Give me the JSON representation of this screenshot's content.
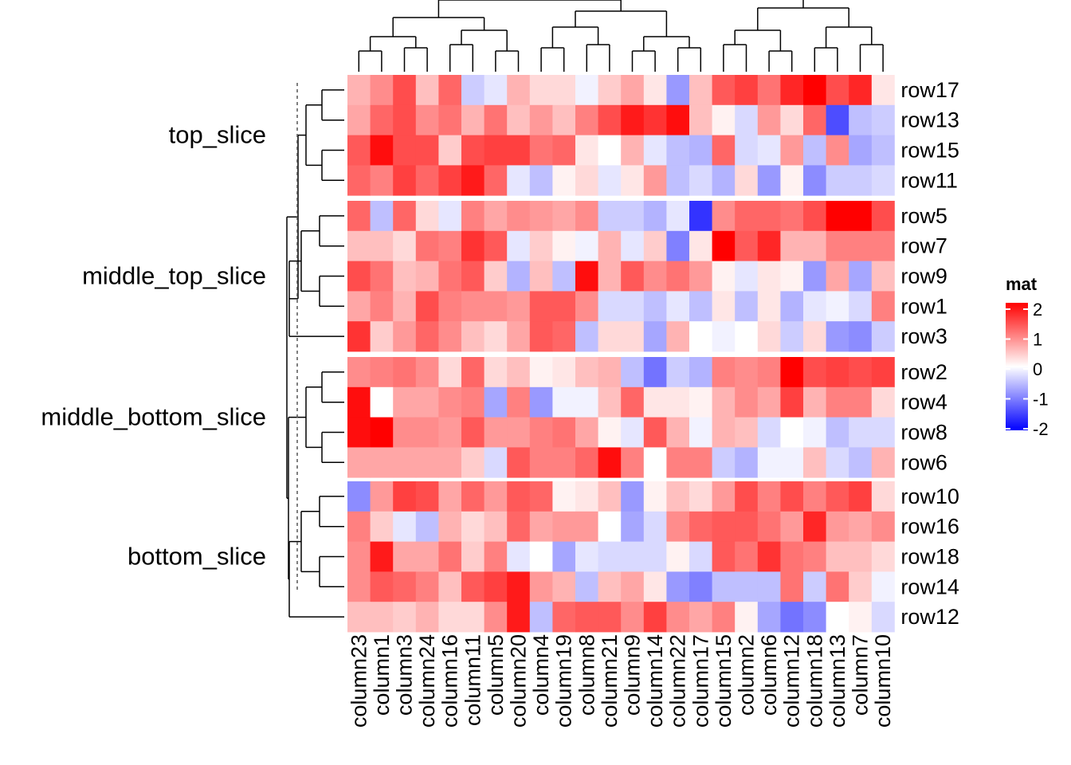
{
  "chart_data": {
    "type": "heatmap",
    "legend_title": "mat",
    "legend_ticks": [
      2,
      1,
      0,
      -1,
      -2
    ],
    "value_range": [
      -2,
      2
    ],
    "colors": {
      "low": "#0000ff",
      "mid": "#ffffff",
      "high": "#ff0000"
    },
    "columns": [
      "column23",
      "column1",
      "column3",
      "column24",
      "column16",
      "column11",
      "column5",
      "column20",
      "column4",
      "column19",
      "column8",
      "column21",
      "column9",
      "column14",
      "column22",
      "column17",
      "column15",
      "column2",
      "column6",
      "column12",
      "column18",
      "column13",
      "column7",
      "column10"
    ],
    "slices": [
      {
        "name": "top_slice",
        "rows": [
          "row17",
          "row13",
          "row15",
          "row11"
        ],
        "values": [
          [
            0.6,
            0.9,
            1.4,
            0.5,
            1.2,
            -0.4,
            -0.2,
            0.6,
            0.3,
            0.3,
            -0.1,
            0.4,
            0.7,
            0.2,
            -0.8,
            0.5,
            1.3,
            1.5,
            1.1,
            1.7,
            2.1,
            1.4,
            1.7,
            0.2
          ],
          [
            0.7,
            1.2,
            1.4,
            0.9,
            1.1,
            0.6,
            1.1,
            0.5,
            0.8,
            0.5,
            1.0,
            1.4,
            1.8,
            1.6,
            1.9,
            0.5,
            0.1,
            -0.3,
            0.8,
            0.3,
            1.2,
            -1.4,
            -0.5,
            -0.4
          ],
          [
            1.3,
            1.9,
            1.4,
            1.4,
            0.4,
            1.4,
            1.5,
            1.5,
            1.1,
            1.2,
            0.2,
            0.0,
            0.6,
            -0.2,
            -0.5,
            -0.6,
            1.2,
            -0.3,
            -0.2,
            0.8,
            -0.5,
            0.9,
            -0.7,
            -0.5
          ],
          [
            1.2,
            1.0,
            1.5,
            1.2,
            1.5,
            1.8,
            1.2,
            -0.2,
            -0.5,
            0.1,
            0.3,
            -0.2,
            0.2,
            0.8,
            -0.5,
            -0.3,
            -0.6,
            0.3,
            -0.8,
            0.1,
            -0.9,
            -0.4,
            -0.4,
            -0.3
          ]
        ]
      },
      {
        "name": "middle_top_slice",
        "rows": [
          "row5",
          "row7",
          "row9",
          "row1",
          "row3"
        ],
        "values": [
          [
            1.2,
            -0.5,
            1.2,
            0.3,
            -0.2,
            1.0,
            0.7,
            0.9,
            0.8,
            0.7,
            0.9,
            -0.4,
            -0.4,
            -0.6,
            -0.2,
            -1.6,
            0.9,
            1.2,
            1.2,
            1.1,
            1.4,
            2.1,
            2.1,
            1.4
          ],
          [
            0.5,
            0.5,
            0.3,
            1.1,
            1.0,
            1.6,
            1.3,
            -0.2,
            0.4,
            0.1,
            -0.1,
            0.6,
            -0.2,
            0.4,
            -1.0,
            0.2,
            2.1,
            1.3,
            1.7,
            0.6,
            0.6,
            1.0,
            1.0,
            1.0
          ],
          [
            1.4,
            1.1,
            0.5,
            0.6,
            1.1,
            1.3,
            0.4,
            -0.6,
            0.5,
            -0.5,
            1.9,
            0.6,
            1.3,
            0.9,
            1.1,
            0.8,
            0.1,
            -0.2,
            0.2,
            0.1,
            -0.8,
            0.7,
            -0.7,
            0.5
          ],
          [
            0.7,
            1.0,
            0.6,
            1.4,
            1.0,
            0.9,
            0.9,
            0.8,
            1.3,
            1.3,
            0.9,
            -0.3,
            -0.3,
            -0.5,
            -0.2,
            -0.5,
            0.2,
            -0.5,
            0.2,
            -0.6,
            -0.2,
            -0.1,
            -0.3,
            1.0
          ],
          [
            1.6,
            0.4,
            0.8,
            1.2,
            0.9,
            0.5,
            0.3,
            0.7,
            1.3,
            1.2,
            -0.5,
            0.3,
            0.3,
            -0.7,
            0.6,
            0.0,
            -0.1,
            0.0,
            0.3,
            -0.4,
            0.3,
            -0.8,
            -0.9,
            -0.4
          ]
        ]
      },
      {
        "name": "middle_bottom_slice",
        "rows": [
          "row2",
          "row4",
          "row8",
          "row6"
        ],
        "values": [
          [
            0.9,
            1.0,
            1.1,
            0.9,
            0.3,
            1.2,
            0.3,
            0.5,
            0.1,
            0.2,
            0.5,
            0.6,
            -0.5,
            -1.1,
            -0.4,
            -0.6,
            1.0,
            0.9,
            1.0,
            2.1,
            1.4,
            1.5,
            1.4,
            1.5
          ],
          [
            1.9,
            0.0,
            0.7,
            0.7,
            0.9,
            1.0,
            -0.7,
            1.0,
            -0.8,
            -0.1,
            -0.1,
            0.5,
            1.2,
            0.2,
            0.2,
            0.1,
            0.6,
            0.9,
            0.7,
            1.5,
            0.6,
            1.0,
            1.0,
            0.3
          ],
          [
            1.9,
            2.2,
            0.9,
            0.9,
            0.8,
            1.3,
            0.8,
            0.8,
            1.0,
            1.1,
            0.7,
            0.1,
            -0.2,
            1.3,
            0.6,
            -0.1,
            0.6,
            0.5,
            -0.3,
            0.0,
            -0.1,
            -0.5,
            -0.3,
            -0.3
          ],
          [
            0.7,
            0.7,
            0.7,
            0.7,
            0.7,
            0.4,
            -0.3,
            1.3,
            1.0,
            1.0,
            1.2,
            1.9,
            1.0,
            0.0,
            1.0,
            1.0,
            -0.4,
            -0.6,
            -0.1,
            -0.1,
            0.5,
            -0.3,
            -0.5,
            0.6
          ]
        ]
      },
      {
        "name": "bottom_slice",
        "rows": [
          "row10",
          "row16",
          "row18",
          "row14",
          "row12"
        ],
        "values": [
          [
            -0.9,
            0.8,
            1.5,
            1.4,
            0.7,
            1.2,
            0.8,
            1.3,
            1.2,
            0.1,
            0.2,
            0.5,
            -0.8,
            0.1,
            0.5,
            0.3,
            0.8,
            1.4,
            1.0,
            1.4,
            1.0,
            1.3,
            1.5,
            0.3
          ],
          [
            1.0,
            0.4,
            -0.2,
            -0.5,
            0.6,
            0.3,
            0.5,
            1.2,
            0.7,
            0.8,
            0.8,
            0.0,
            -0.7,
            -0.3,
            0.9,
            1.2,
            1.3,
            1.3,
            1.1,
            0.8,
            1.7,
            0.8,
            0.7,
            0.9
          ],
          [
            0.9,
            1.8,
            0.7,
            0.7,
            1.1,
            0.4,
            1.0,
            -0.2,
            0.0,
            -0.7,
            -0.2,
            -0.3,
            -0.3,
            -0.3,
            0.1,
            -0.3,
            1.3,
            1.1,
            1.6,
            1.1,
            1.0,
            0.5,
            0.5,
            0.3
          ],
          [
            0.9,
            1.3,
            1.2,
            1.0,
            0.5,
            1.3,
            1.5,
            1.8,
            0.8,
            0.6,
            -0.5,
            0.5,
            0.7,
            0.2,
            -0.8,
            -1.0,
            -0.5,
            -0.5,
            -0.5,
            1.1,
            -0.4,
            1.1,
            0.4,
            -0.1
          ],
          [
            0.5,
            0.5,
            0.4,
            0.6,
            0.3,
            0.3,
            0.9,
            1.8,
            -0.5,
            1.2,
            1.3,
            1.3,
            0.9,
            1.5,
            0.9,
            0.7,
            1.0,
            0.1,
            -0.7,
            -1.1,
            -0.9,
            0.0,
            0.1,
            -0.3
          ]
        ]
      }
    ]
  }
}
